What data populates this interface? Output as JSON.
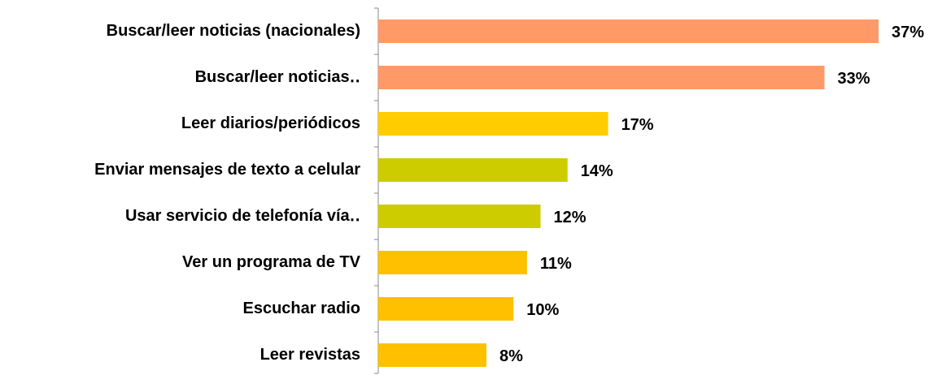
{
  "chart_data": {
    "type": "bar",
    "orientation": "horizontal",
    "categories": [
      "Buscar/leer noticias (nacionales)",
      "Buscar/leer noticias‥",
      "Leer diarios/periódicos",
      "Enviar mensajes de texto a celular",
      "Usar servicio de telefonía vía‥",
      "Ver un programa de TV",
      "Escuchar radio",
      "Leer revistas"
    ],
    "values": [
      37,
      33,
      17,
      14,
      12,
      11,
      10,
      8
    ],
    "value_labels": [
      "37%",
      "33%",
      "17%",
      "14%",
      "12%",
      "11%",
      "10%",
      "8%"
    ],
    "colors": [
      "#ff9966",
      "#ff9966",
      "#ffcc00",
      "#cccc00",
      "#cccc00",
      "#ffc000",
      "#ffc000",
      "#ffc000"
    ]
  }
}
